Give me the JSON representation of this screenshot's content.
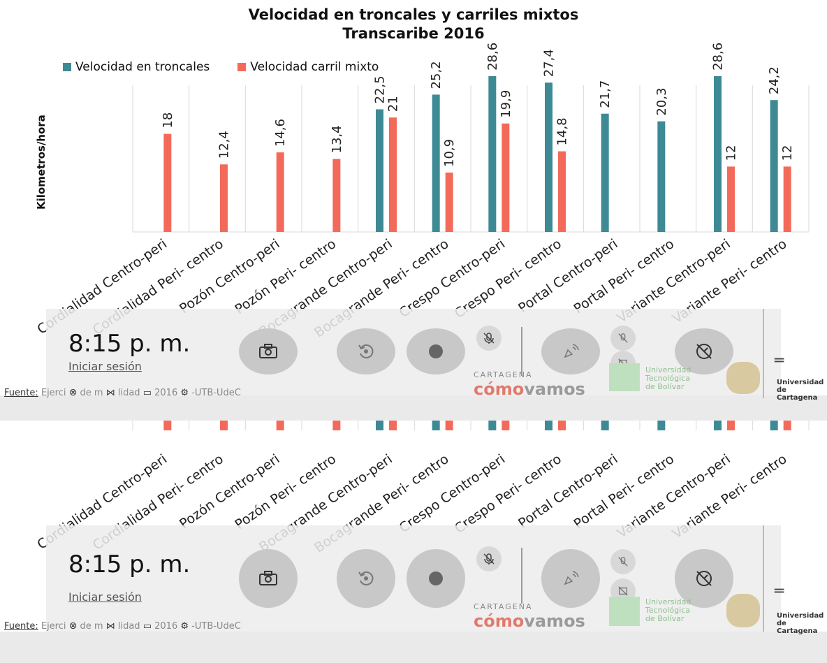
{
  "chart_data": {
    "type": "bar",
    "title": "Velocidad en troncales y carriles mixtos",
    "subtitle": "Transcaribe 2016",
    "ylabel": "Kilometros/hora",
    "xlabel": "",
    "ylim": [
      0,
      30
    ],
    "grid": true,
    "legend_position": "top-left",
    "categories": [
      "Cordialidad Centro-peri",
      "Cordialidad Peri- centro",
      "Pozón Centro-peri",
      "Pozón  Peri- centro",
      "Bocagrande Centro-peri",
      "Bocagrande  Peri- centro",
      "Crespo Centro-peri",
      "Crespo  Peri- centro",
      "Portal Centro-peri",
      "Portal  Peri- centro",
      "Variante Centro-peri",
      "Variante  Peri- centro"
    ],
    "series": [
      {
        "name": "Velocidad en troncales",
        "color": "#3d8a95",
        "values": [
          null,
          null,
          null,
          null,
          22.5,
          25.2,
          28.6,
          27.4,
          21.7,
          20.3,
          28.6,
          24.2
        ],
        "labels": [
          "",
          "",
          "",
          "",
          "22,5",
          "25,2",
          "28,6",
          "27,4",
          "21,7",
          "20,3",
          "28,6",
          "24,2"
        ]
      },
      {
        "name": "Velocidad carril mixto",
        "color": "#f46a5a",
        "values": [
          18,
          12.4,
          14.6,
          13.4,
          21,
          10.9,
          19.9,
          14.8,
          null,
          null,
          12,
          12
        ],
        "labels": [
          "18",
          "12,4",
          "14,6",
          "13,4",
          "21",
          "10,9",
          "19,9",
          "14,8",
          "",
          "",
          "12",
          "12"
        ]
      }
    ]
  },
  "overlay": {
    "time": "8:15 p. m.",
    "signin": "Iniciar sesión",
    "icons": {
      "camera": "camera-icon",
      "replay": "replay-icon",
      "record": "record-icon",
      "mic_off": "mic-off-icon",
      "broadcast_off": "broadcast-off-icon",
      "camera_off": "camera-off-icon",
      "performance_off": "performance-off-icon",
      "menu": "menu-icon",
      "xbox": "xbox-icon",
      "group": "group-icon",
      "folder": "folder-icon",
      "gear": "gear-icon"
    }
  },
  "footer": {
    "fuente_label": "Fuente:",
    "source_text": "Ejercicio de movilidad 2016 - UTB-UdeC",
    "frag1": "Ejerci",
    "frag2": "de m",
    "frag3": "lidad",
    "frag4": "2016",
    "frag5": "-UTB-UdeC"
  },
  "logos": {
    "cartagena": "CARTAGENA",
    "como": "cómo",
    "vamos": "vamos",
    "utb_line1": "Universidad",
    "utb_line2": "Tecnológica",
    "utb_line3": "de Bolívar",
    "udec_line1": "Universidad",
    "udec_line2": "de Cartagena"
  }
}
